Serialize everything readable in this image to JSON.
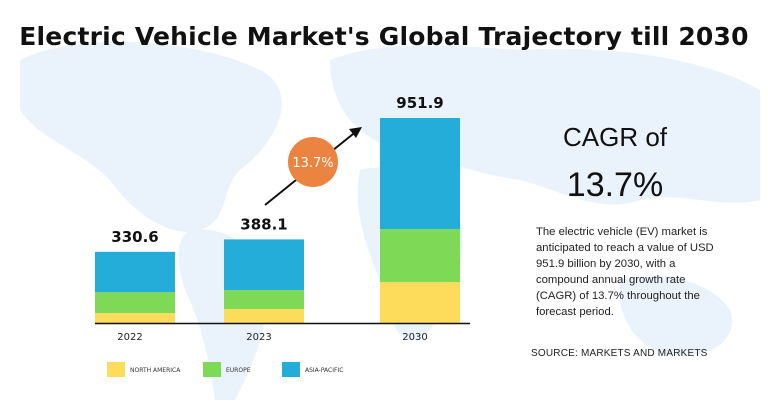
{
  "title": "Electric Vehicle Market's Global Trajectory till 2030",
  "cagr": {
    "label": "CAGR of",
    "value": "13.7%"
  },
  "description": "The electric vehicle (EV) market is anticipated to reach a value of USD 951.9 billion by 2030, with a compound annual growth rate (CAGR) of 13.7% throughout the forecast period.",
  "source": "SOURCE: MARKETS AND MARKETS",
  "colors": {
    "north_america": "#FDDC5C",
    "europe": "#7ED957",
    "asia_pacific": "#23ADD8",
    "badge": "#EB8341",
    "map": "#EAF3FB"
  },
  "chart_data": {
    "type": "bar",
    "stacked": true,
    "title": "",
    "categories": [
      "2022",
      "2023",
      "2030"
    ],
    "totals": [
      "330.6",
      "388.1",
      "951.9"
    ],
    "total_values": [
      330.6,
      388.1,
      951.9
    ],
    "series": [
      {
        "name": "NORTH AMERICA",
        "color": "#FDDC5C",
        "values": [
          46,
          65,
          190
        ]
      },
      {
        "name": "EUROPE",
        "color": "#7ED957",
        "values": [
          97,
          88,
          246
        ]
      },
      {
        "name": "ASIA-PACIFIC",
        "color": "#23ADD8",
        "values": [
          187.6,
          235.1,
          515.9
        ]
      }
    ],
    "annotation": "13.7%",
    "ylim": [
      0,
      951.9
    ],
    "grid": false,
    "legend": "bottom"
  }
}
